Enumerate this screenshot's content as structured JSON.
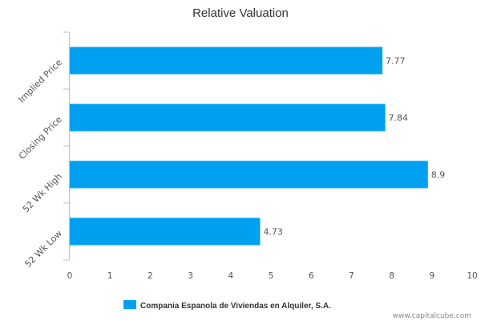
{
  "chart_data": {
    "type": "bar",
    "orientation": "horizontal",
    "title": "Relative Valuation",
    "categories": [
      "Implied Price",
      "Closing Price",
      "52 Wk High",
      "52 Wk Low"
    ],
    "series": [
      {
        "name": "Compania Espanola de Viviendas en Alquiler, S.A.",
        "values": [
          7.77,
          7.84,
          8.9,
          4.73
        ],
        "labels": [
          "7.77",
          "7.84",
          "8.9",
          "4.73"
        ],
        "color": "#00a0f0"
      }
    ],
    "xlim": [
      0,
      10
    ],
    "xticks": [
      "0",
      "1",
      "2",
      "3",
      "4",
      "5",
      "6",
      "7",
      "8",
      "9",
      "10"
    ],
    "grid": false,
    "legend_position": "bottom"
  },
  "credit": "www.capitalcube.com"
}
